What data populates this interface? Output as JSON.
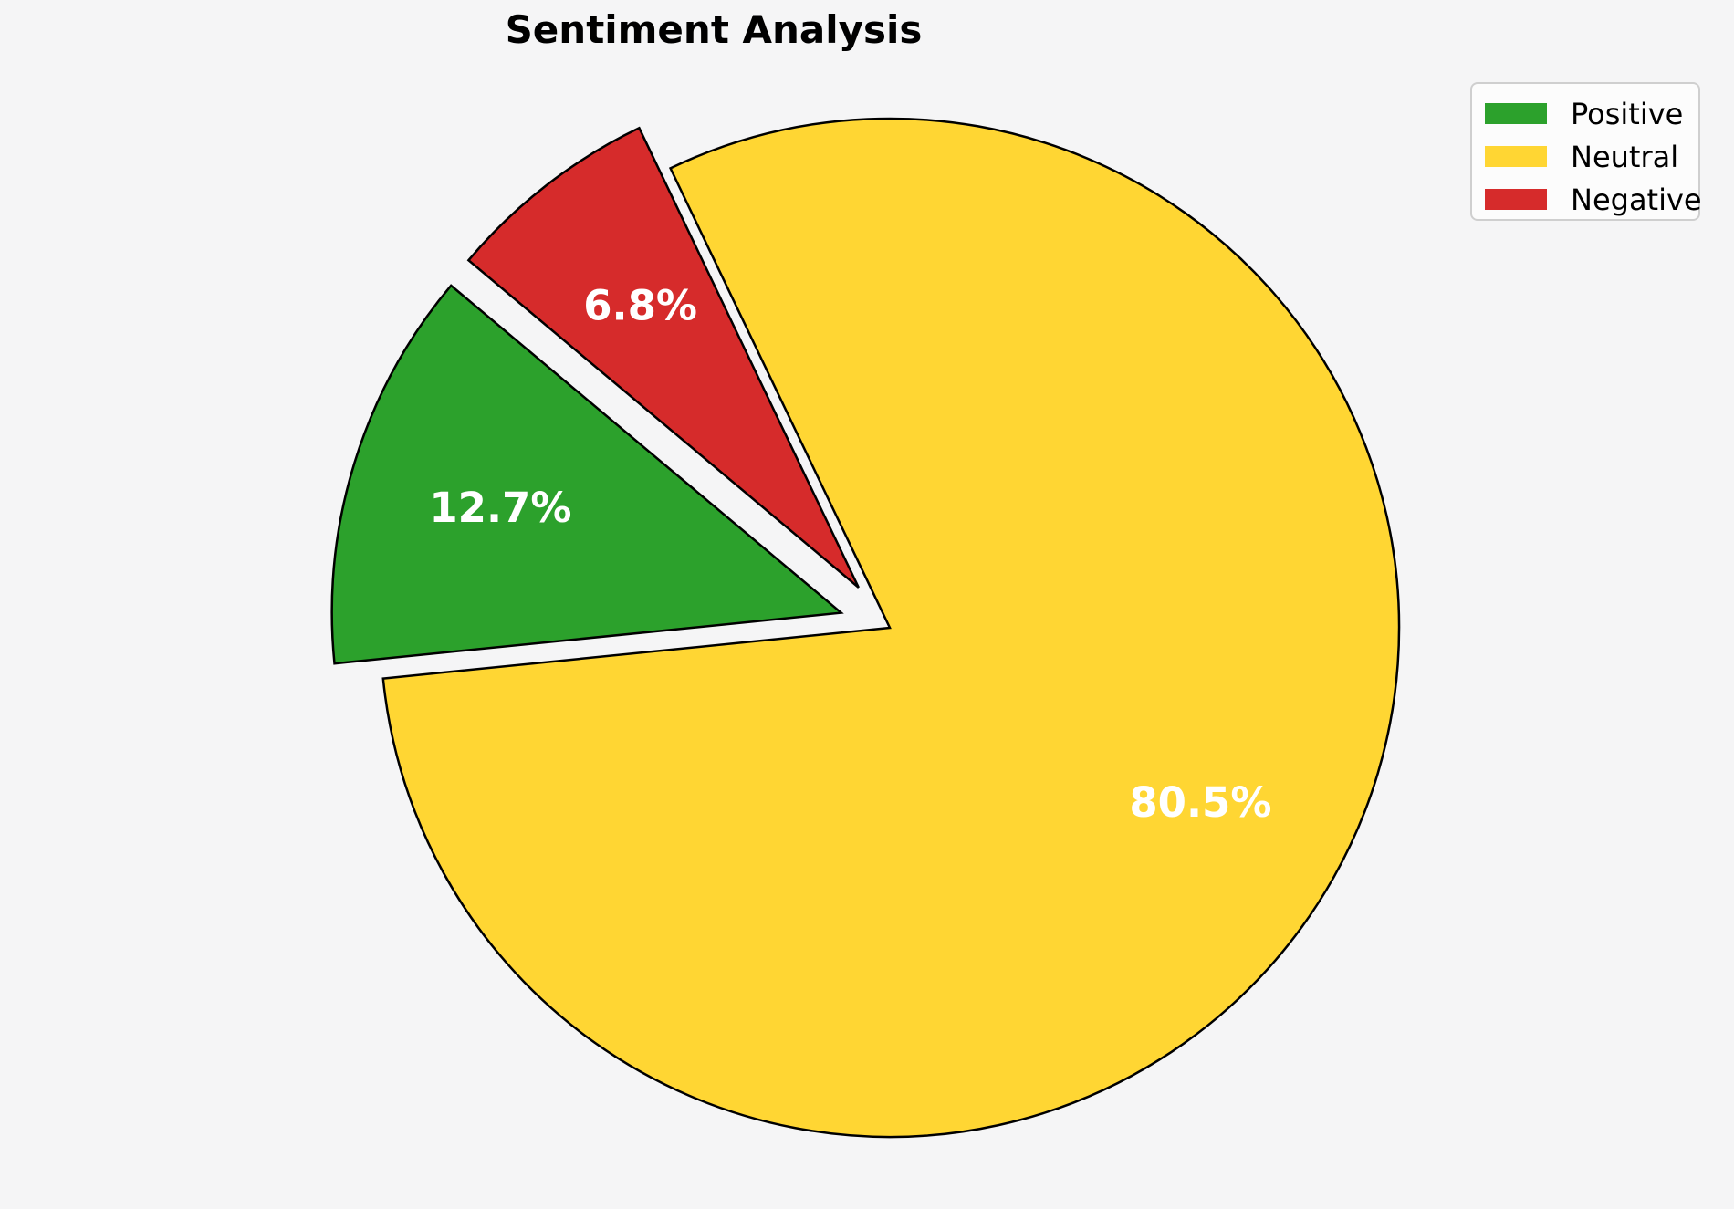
{
  "title": "Sentiment Analysis",
  "background_color": "#f5f5f6",
  "chart_data": {
    "type": "pie",
    "title": "Sentiment Analysis",
    "categories": [
      "Positive",
      "Neutral",
      "Negative"
    ],
    "values": [
      12.7,
      80.5,
      6.8
    ],
    "slice_labels": [
      "12.7%",
      "80.5%",
      "6.8%"
    ],
    "colors": [
      "#2ca12c",
      "#ffd633",
      "#d62b2b"
    ],
    "edge_color": "#000000",
    "label_color": "#ffffff",
    "start_angle": 140,
    "direction": "counterclockwise",
    "explode": [
      0.1,
      0,
      0.1
    ],
    "pct_distance": 0.7,
    "legend": {
      "position": "upper right",
      "entries": [
        "Positive",
        "Neutral",
        "Negative"
      ]
    }
  }
}
